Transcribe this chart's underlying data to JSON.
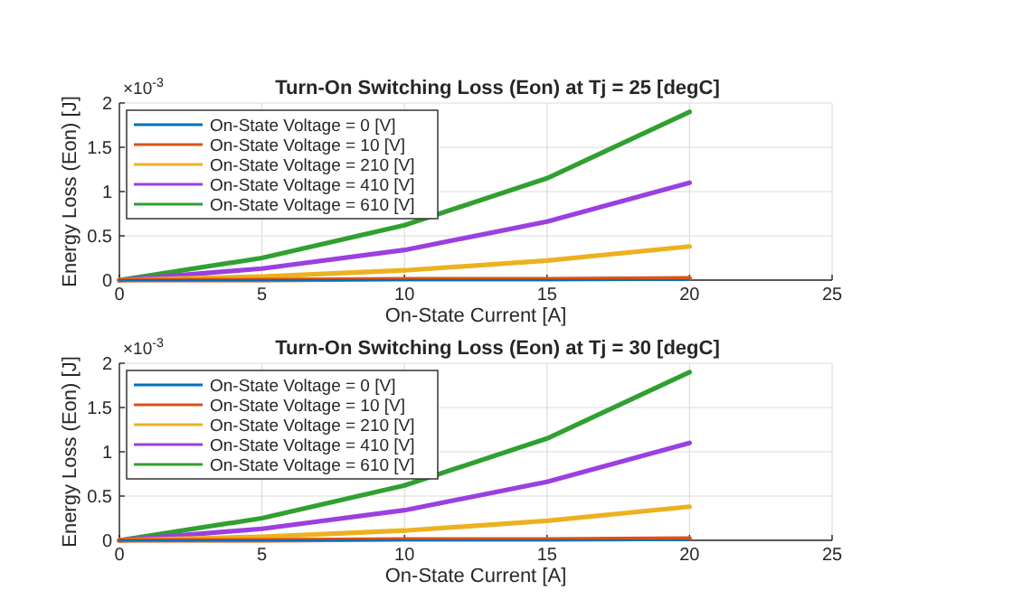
{
  "chart_data": [
    {
      "type": "line",
      "title": "Turn-On Switching Loss (Eon) at Tj = 25 [degC]",
      "xlabel": "On-State Current [A]",
      "ylabel": "Energy Loss (Eon) [J]",
      "annotations": [
        "×10$^{-3}$"
      ],
      "x": [
        0,
        5,
        10,
        15,
        20
      ],
      "xlim": [
        0,
        25
      ],
      "xticks": [
        0,
        5,
        10,
        15,
        20,
        25
      ],
      "ylim": [
        0,
        2
      ],
      "yticks": [
        0,
        0.5,
        1,
        1.5,
        2
      ],
      "grid": true,
      "legend": "top left",
      "series": [
        {
          "name": "On-State Voltage = 0 [V]",
          "color": "#0072bd",
          "values": [
            0,
            0,
            0,
            0,
            0
          ]
        },
        {
          "name": "On-State Voltage = 10 [V]",
          "color": "#d95319",
          "values": [
            0,
            0,
            0.01,
            0.01,
            0.02
          ]
        },
        {
          "name": "On-State Voltage = 210 [V]",
          "color": "#edb120",
          "values": [
            0,
            0.04,
            0.11,
            0.22,
            0.38
          ]
        },
        {
          "name": "On-State Voltage = 410 [V]",
          "color": "#9b3fe0",
          "values": [
            0,
            0.13,
            0.34,
            0.66,
            1.1
          ]
        },
        {
          "name": "On-State Voltage = 610 [V]",
          "color": "#30a030",
          "values": [
            0,
            0.25,
            0.62,
            1.15,
            1.9
          ]
        }
      ]
    },
    {
      "type": "line",
      "title": "Turn-On Switching Loss (Eon) at Tj = 30 [degC]",
      "xlabel": "On-State Current [A]",
      "ylabel": "Energy Loss (Eon) [J]",
      "annotations": [
        "×10$^{-3}$"
      ],
      "x": [
        0,
        5,
        10,
        15,
        20
      ],
      "xlim": [
        0,
        25
      ],
      "xticks": [
        0,
        5,
        10,
        15,
        20,
        25
      ],
      "ylim": [
        0,
        2
      ],
      "yticks": [
        0,
        0.5,
        1,
        1.5,
        2
      ],
      "grid": true,
      "legend": "top left",
      "series": [
        {
          "name": "On-State Voltage = 0 [V]",
          "color": "#0072bd",
          "values": [
            0,
            0,
            0,
            0,
            0
          ]
        },
        {
          "name": "On-State Voltage = 10 [V]",
          "color": "#d95319",
          "values": [
            0,
            0,
            0.01,
            0.01,
            0.02
          ]
        },
        {
          "name": "On-State Voltage = 210 [V]",
          "color": "#edb120",
          "values": [
            0,
            0.04,
            0.11,
            0.22,
            0.38
          ]
        },
        {
          "name": "On-State Voltage = 410 [V]",
          "color": "#9b3fe0",
          "values": [
            0,
            0.13,
            0.34,
            0.66,
            1.1
          ]
        },
        {
          "name": "On-State Voltage = 610 [V]",
          "color": "#30a030",
          "values": [
            0,
            0.25,
            0.62,
            1.15,
            1.9
          ]
        }
      ]
    }
  ]
}
